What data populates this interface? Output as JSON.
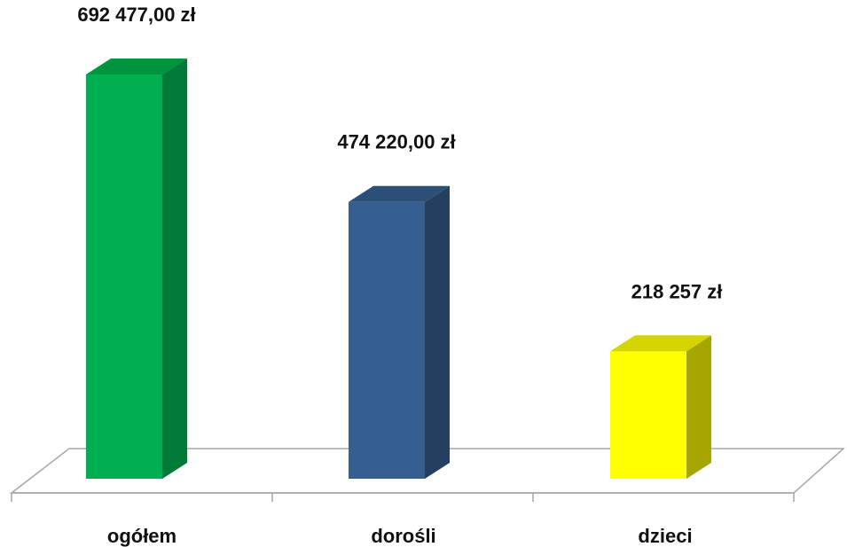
{
  "chart_data": {
    "type": "bar",
    "categories": [
      "ogółem",
      "dorośli",
      "dzieci"
    ],
    "values": [
      692477,
      474220,
      218257
    ],
    "data_labels": [
      "692 477,00 zł",
      "474 220,00 zł",
      "218 257 zł"
    ],
    "title": "",
    "xlabel": "",
    "ylabel": "",
    "ylim": [
      0,
      700000
    ],
    "grid": false,
    "legend": "none",
    "three_d": true,
    "colors": [
      {
        "front": "#00b050",
        "side": "#007a37",
        "top": "#00943f"
      },
      {
        "front": "#365f91",
        "side": "#243f60",
        "top": "#2c4f78"
      },
      {
        "front": "#ffff00",
        "side": "#a6a600",
        "top": "#d4d400"
      }
    ],
    "floor_color": "#a6a6a6"
  }
}
